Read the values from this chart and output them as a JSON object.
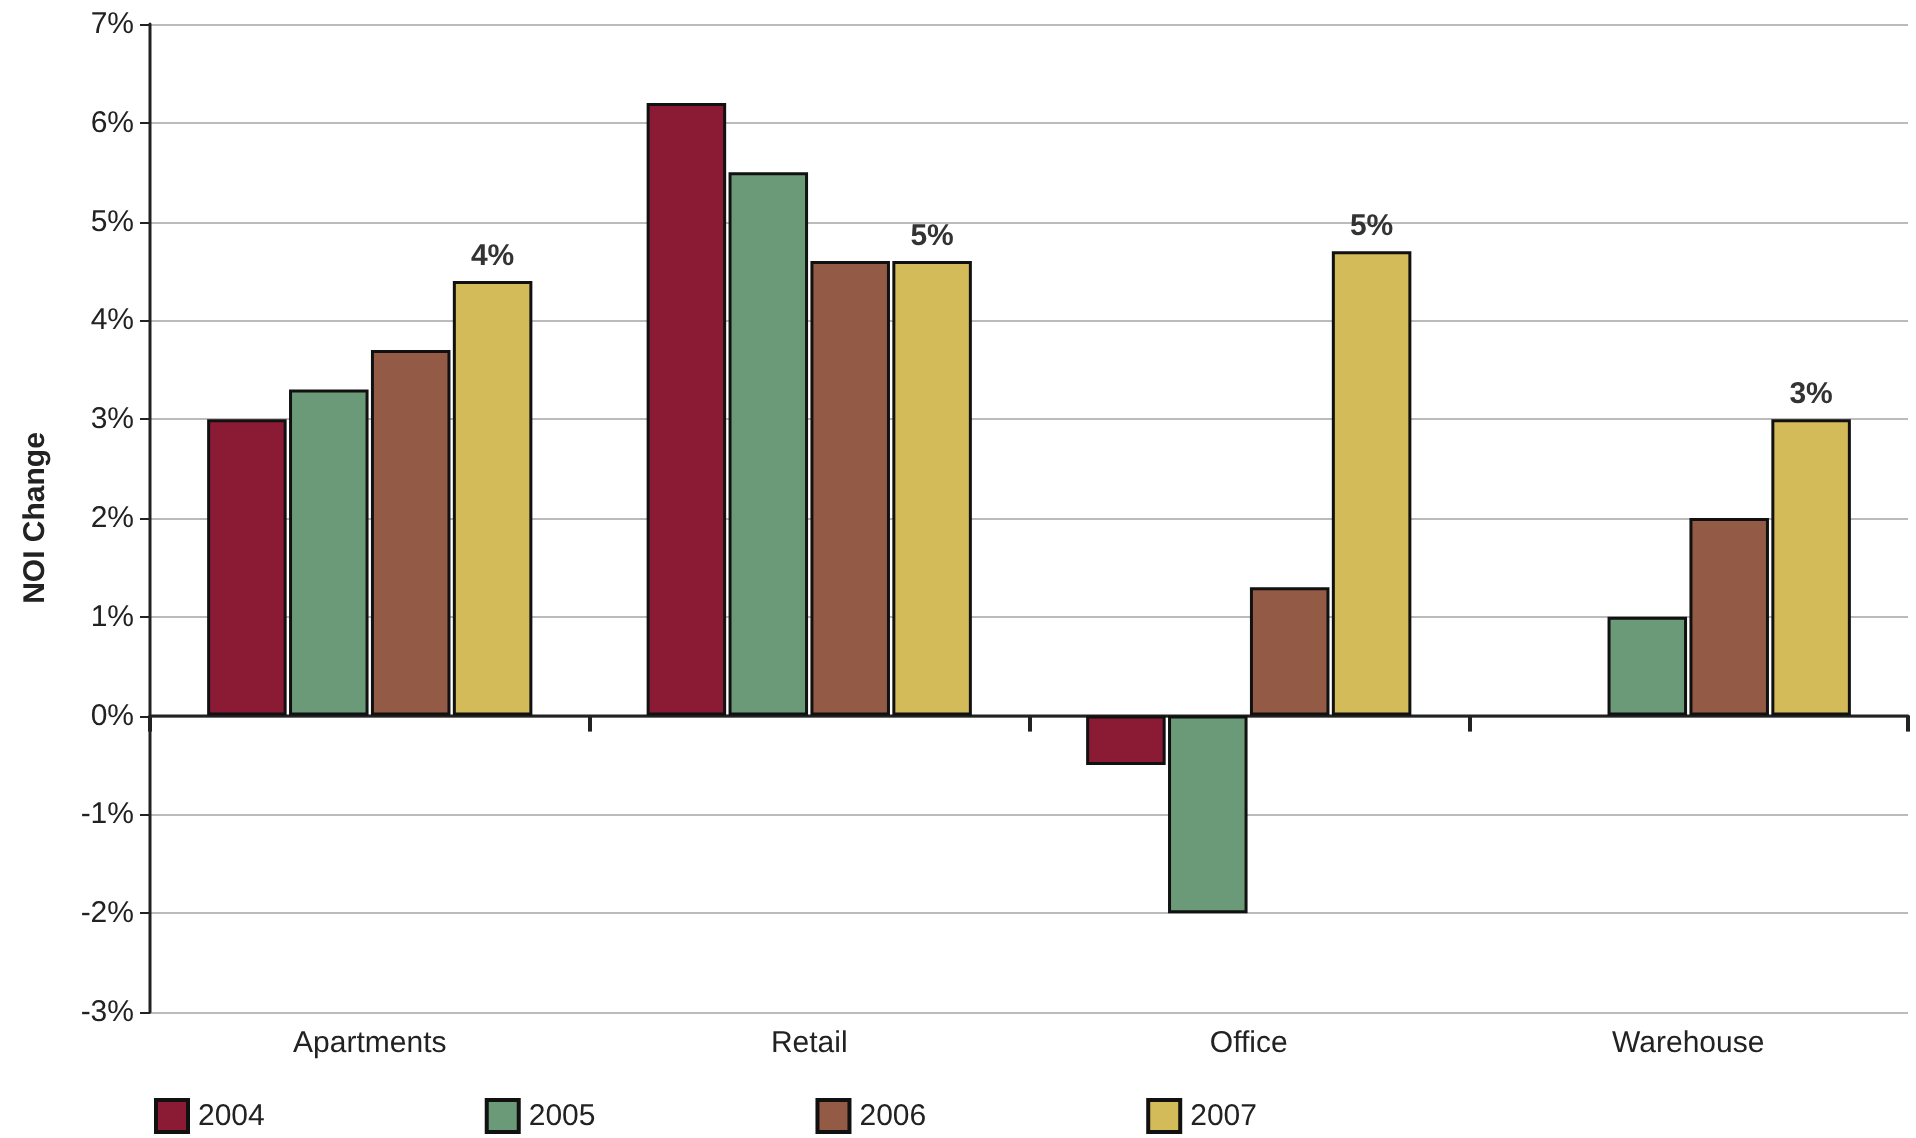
{
  "chart_data": {
    "type": "bar",
    "ylabel": "NOI Change",
    "categories": [
      "Apartments",
      "Retail",
      "Office",
      "Warehouse"
    ],
    "series": [
      {
        "name": "2004",
        "color": "#8b1a35",
        "values": [
          3.0,
          6.2,
          -0.5,
          null
        ]
      },
      {
        "name": "2005",
        "color": "#6b9a78",
        "values": [
          3.3,
          5.5,
          -2.0,
          1.0
        ]
      },
      {
        "name": "2006",
        "color": "#935a45",
        "values": [
          3.7,
          4.6,
          1.3,
          2.0
        ]
      },
      {
        "name": "2007",
        "color": "#d4bb5a",
        "values": [
          4.4,
          4.6,
          4.7,
          3.0
        ],
        "value_labels": [
          "4%",
          "5%",
          "5%",
          "3%"
        ]
      }
    ],
    "ylim": [
      -3,
      7
    ],
    "yticks": [
      {
        "value": -3,
        "label": "-3%"
      },
      {
        "value": -2,
        "label": "-2%"
      },
      {
        "value": -1,
        "label": "-1%"
      },
      {
        "value": 0,
        "label": "0%"
      },
      {
        "value": 1,
        "label": "1%"
      },
      {
        "value": 2,
        "label": "2%"
      },
      {
        "value": 3,
        "label": "3%"
      },
      {
        "value": 4,
        "label": "4%"
      },
      {
        "value": 5,
        "label": "5%"
      },
      {
        "value": 6,
        "label": "6%"
      },
      {
        "value": 7,
        "label": "7%"
      }
    ],
    "grid": "y",
    "legend": "bottom left"
  }
}
